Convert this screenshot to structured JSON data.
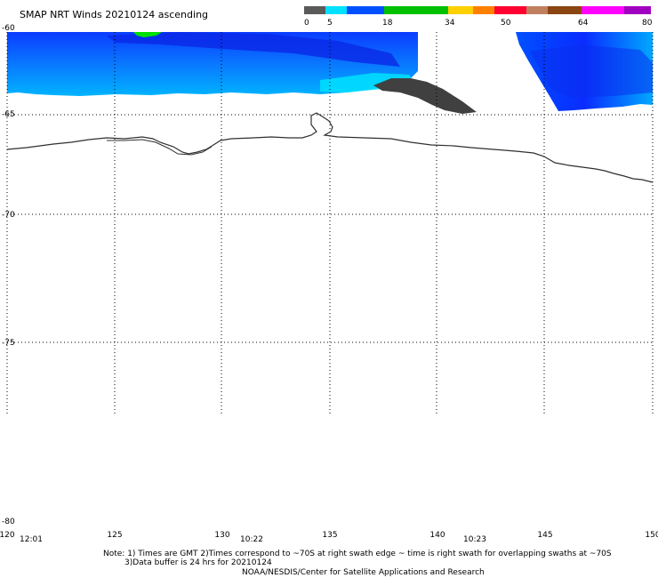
{
  "title": "SMAP NRT Winds 20210124 ascending",
  "colorbar": {
    "ticks": [
      "0",
      "5",
      "18",
      "34",
      "50",
      "64",
      "80"
    ],
    "colors": [
      "#5a5a5a",
      "#00c8ff",
      "#0000ff",
      "#00ff00",
      "#ffff00",
      "#ff8000",
      "#ff0000",
      "#a0522d",
      "#ff00ff",
      "#8b008b"
    ]
  },
  "axes": {
    "lat_labels": [
      "-60",
      "-65",
      "-70",
      "-75",
      "-80"
    ],
    "lon_labels": [
      "120",
      "125",
      "130",
      "135",
      "140",
      "145",
      "150"
    ],
    "lat_range": [
      -80,
      -60
    ],
    "lon_range": [
      120,
      150
    ],
    "grid": true
  },
  "swath_times": [
    "12:01",
    "10:22",
    "10:23"
  ],
  "notes": {
    "line1": "Note: 1) Times are GMT 2)Times correspond to ~70S at right swath edge ~ time is right swath for overlapping swaths at ~70S",
    "line2": "3)Data buffer is 24 hrs for 20210124",
    "line3": "NOAA/NESDIS/Center for Satellite Applications and Research"
  }
}
